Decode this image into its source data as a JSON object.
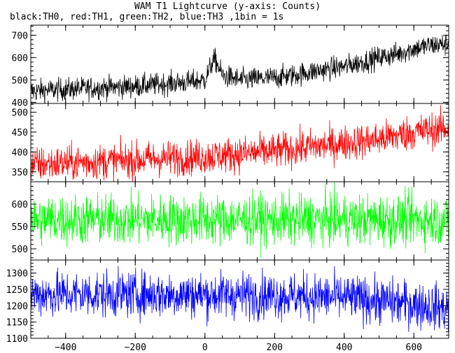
{
  "header": {
    "title": "WAM T1 Lightcurve (y-axis: Counts)",
    "subtitle": "black:TH0, red:TH1, green:TH2, blue:TH3 ,1bin = 1s"
  },
  "chart_data": {
    "type": "line",
    "xlim": [
      -500,
      700
    ],
    "x_ticks": [
      -400,
      -200,
      0,
      200,
      400,
      600
    ],
    "grid": false,
    "bin_seconds": 1,
    "panels": [
      {
        "series": "TH0",
        "color": "#000000",
        "ylim": [
          395,
          745
        ],
        "y_ticks": [
          400,
          500,
          600,
          700
        ],
        "x": [
          -500,
          -450,
          -400,
          -350,
          -300,
          -250,
          -200,
          -150,
          -100,
          -50,
          0,
          20,
          30,
          50,
          100,
          150,
          200,
          250,
          300,
          350,
          400,
          450,
          500,
          550,
          600,
          650,
          700
        ],
        "mean": [
          450,
          455,
          458,
          462,
          465,
          468,
          472,
          478,
          485,
          490,
          500,
          575,
          590,
          520,
          500,
          505,
          510,
          520,
          535,
          548,
          560,
          580,
          600,
          615,
          640,
          655,
          660
        ],
        "noise": 25
      },
      {
        "series": "TH1",
        "color": "#ff0000",
        "ylim": [
          325,
          522
        ],
        "y_ticks": [
          350,
          400,
          450,
          500
        ],
        "x": [
          -500,
          -400,
          -300,
          -200,
          -100,
          0,
          100,
          200,
          300,
          400,
          500,
          600,
          700
        ],
        "mean": [
          368,
          372,
          376,
          380,
          384,
          388,
          395,
          402,
          412,
          422,
          432,
          450,
          460
        ],
        "noise": 22
      },
      {
        "series": "TH2",
        "color": "#00ff00",
        "ylim": [
          475,
          650
        ],
        "y_ticks": [
          500,
          550,
          600
        ],
        "x": [
          -500,
          700
        ],
        "mean": [
          565,
          565
        ],
        "noise": 28
      },
      {
        "series": "TH3",
        "color": "#0000ff",
        "ylim": [
          1100,
          1340
        ],
        "y_ticks": [
          1100,
          1150,
          1200,
          1250,
          1300
        ],
        "x": [
          -500,
          -200,
          200,
          400,
          600,
          700
        ],
        "mean": [
          1235,
          1235,
          1232,
          1225,
          1205,
          1190
        ],
        "noise": 35
      }
    ]
  }
}
